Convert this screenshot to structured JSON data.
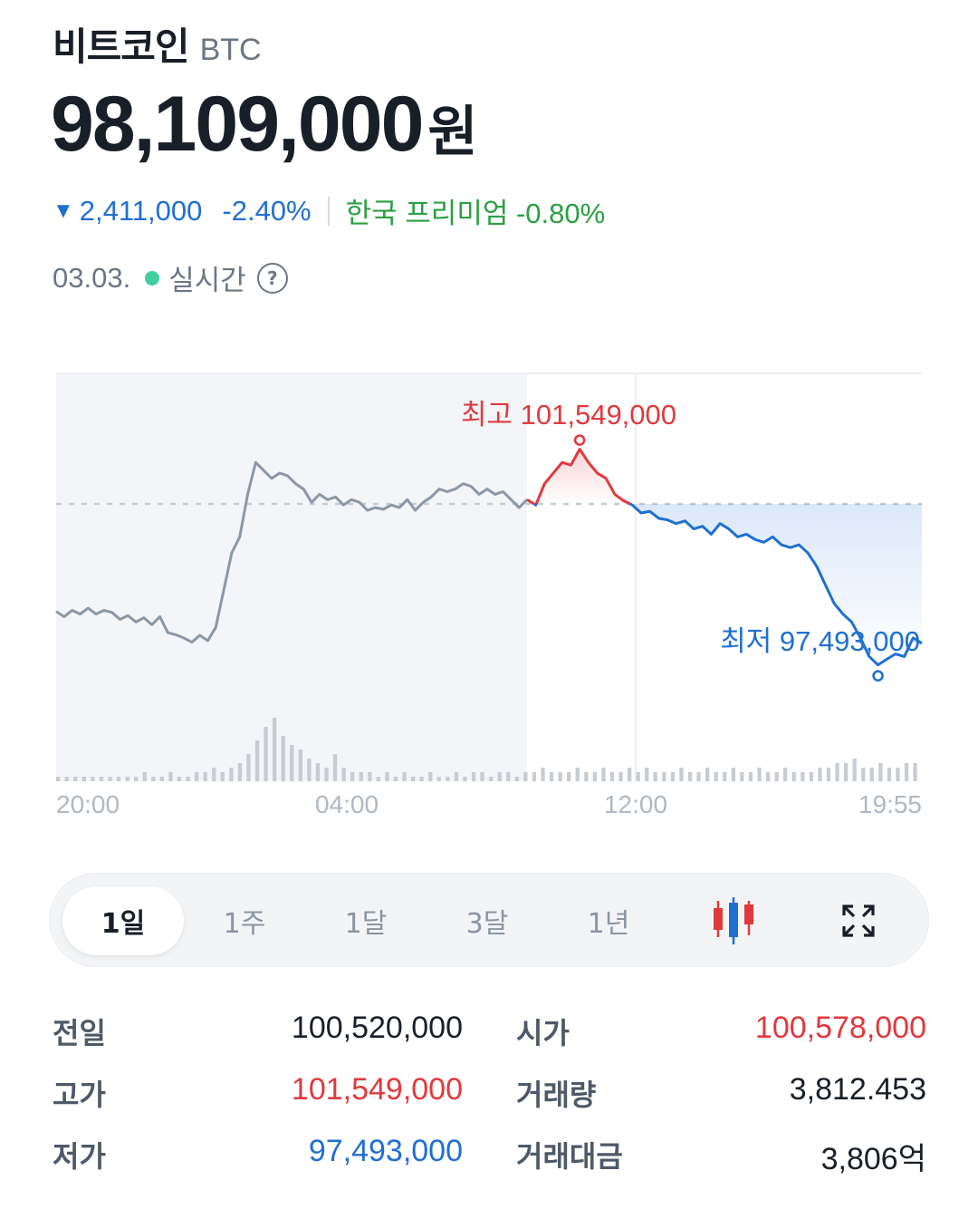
{
  "header": {
    "coin_name": "비트코인",
    "coin_symbol": "BTC",
    "price": "98,109,000",
    "price_unit": "원",
    "change_amount": "2,411,000",
    "change_percent": "-2.40%",
    "premium_label": "한국 프리미엄 -0.80%",
    "date": "03.03.",
    "live_label": "실시간",
    "help_glyph": "?"
  },
  "colors": {
    "up": "#e0393e",
    "down": "#1f6fd3",
    "neutral_line": "#8d97a5",
    "premium": "#2aa043",
    "live_dot": "#3fcf9c"
  },
  "chart_data": {
    "type": "line",
    "x_tick_labels": [
      "20:00",
      "04:00",
      "12:00",
      "19:55"
    ],
    "high_label": "최고 101,549,000",
    "low_label": "최저 97,493,000",
    "high": 101549000,
    "low": 97493000,
    "prev_close": 100520000,
    "series": [
      {
        "values": [
          98500000,
          98400000,
          98520000,
          98450000,
          98560000,
          98450000,
          98520000,
          98480000,
          98350000,
          98420000,
          98300000,
          98380000,
          98250000,
          98400000,
          98100000,
          98060000,
          98000000,
          97920000,
          98050000,
          97950000,
          98200000,
          98900000,
          99600000,
          99900000,
          100700000,
          101300000,
          101150000,
          101000000,
          101100000,
          101050000,
          100900000,
          100800000,
          100550000,
          100700000,
          100600000,
          100650000,
          100500000,
          100600000,
          100550000,
          100400000,
          100450000,
          100420000,
          100500000,
          100450000,
          100600000,
          100400000,
          100550000,
          100650000,
          100800000,
          100750000,
          100800000,
          100900000,
          100850000,
          100700000,
          100800000,
          100700000,
          100750000,
          100600000,
          100450000,
          100600000
        ],
        "comment_removed": true
      },
      {
        "name": "",
        "values": [
          100600000,
          100500000,
          100900000,
          101100000,
          101300000,
          101250000,
          101549000,
          101300000,
          101100000,
          101000000,
          100700000,
          100580000,
          100500000,
          100350000,
          100380000,
          100250000,
          100220000,
          100150000,
          100200000,
          100050000,
          100100000,
          99950000,
          100150000,
          100050000,
          99900000,
          99950000,
          99850000,
          99800000,
          99900000,
          99750000,
          99700000,
          99750000,
          99600000,
          99350000,
          99000000,
          98650000,
          98450000,
          98300000,
          98000000,
          97650000,
          97493000,
          97600000,
          97700000,
          97650000,
          98000000,
          97900000
        ]
      }
    ],
    "volume": [
      1,
      1,
      1,
      1,
      1,
      1,
      1,
      1,
      1,
      1,
      2,
      1,
      1,
      2,
      1,
      1,
      2,
      2,
      3,
      2,
      3,
      4,
      6,
      9,
      12,
      14,
      10,
      8,
      7,
      5,
      4,
      3,
      6,
      3,
      2,
      2,
      2,
      1,
      2,
      1,
      2,
      1,
      1,
      2,
      1,
      1,
      2,
      1,
      2,
      2,
      1,
      2,
      2,
      1,
      2,
      2,
      3,
      2,
      2,
      2,
      3,
      2,
      2,
      3,
      2,
      2,
      3,
      2,
      3,
      2,
      2,
      2,
      3,
      2,
      2,
      3,
      2,
      2,
      3,
      2,
      2,
      3,
      2,
      2,
      3,
      2,
      2,
      2,
      3,
      3,
      4,
      4,
      5,
      3,
      3,
      4,
      3,
      3,
      4,
      4
    ]
  },
  "range_tabs": [
    "1일",
    "1주",
    "1달",
    "3달",
    "1년"
  ],
  "range_tab_active": "1일",
  "icons": {
    "candle": "candlestick-icon",
    "fullscreen": "expand-icon"
  },
  "stats": {
    "prev_label": "전일",
    "prev_value": "100,520,000",
    "open_label": "시가",
    "open_value": "100,578,000",
    "high_label": "고가",
    "high_value": "101,549,000",
    "volume_label": "거래량",
    "volume_value": "3,812.453",
    "low_label": "저가",
    "low_value": "97,493,000",
    "turnover_label": "거래대금",
    "turnover_value": "3,806억"
  }
}
